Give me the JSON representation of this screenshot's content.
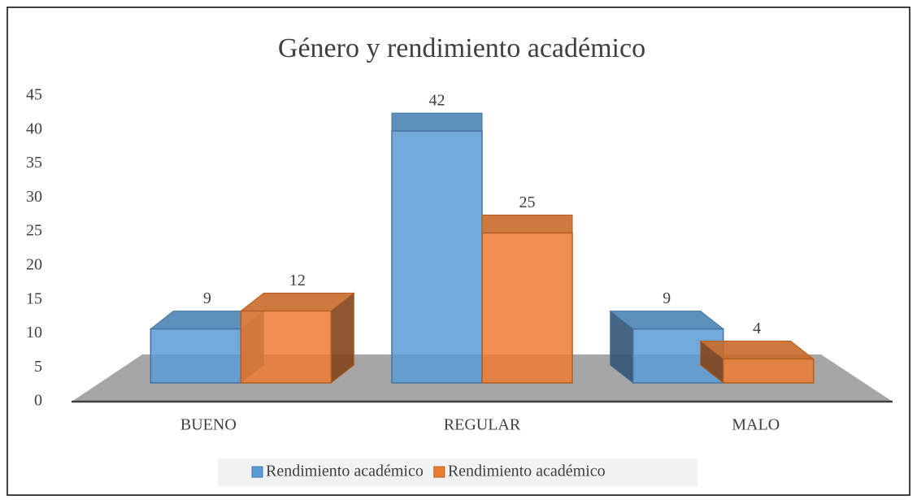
{
  "chart_data": {
    "type": "bar3d",
    "title": "Género y rendimiento académico",
    "categories": [
      "BUENO",
      "REGULAR",
      "MALO"
    ],
    "series": [
      {
        "name": "Rendimiento académico",
        "color": "#5b9bd5",
        "values": [
          9,
          42,
          9
        ]
      },
      {
        "name": "Rendimiento académico",
        "color": "#ed7d31",
        "values": [
          12,
          25,
          4
        ]
      }
    ],
    "ylim": [
      0,
      45
    ],
    "yticks": [
      0,
      5,
      10,
      15,
      20,
      25,
      30,
      35,
      40,
      45
    ],
    "legend": "bottom"
  }
}
